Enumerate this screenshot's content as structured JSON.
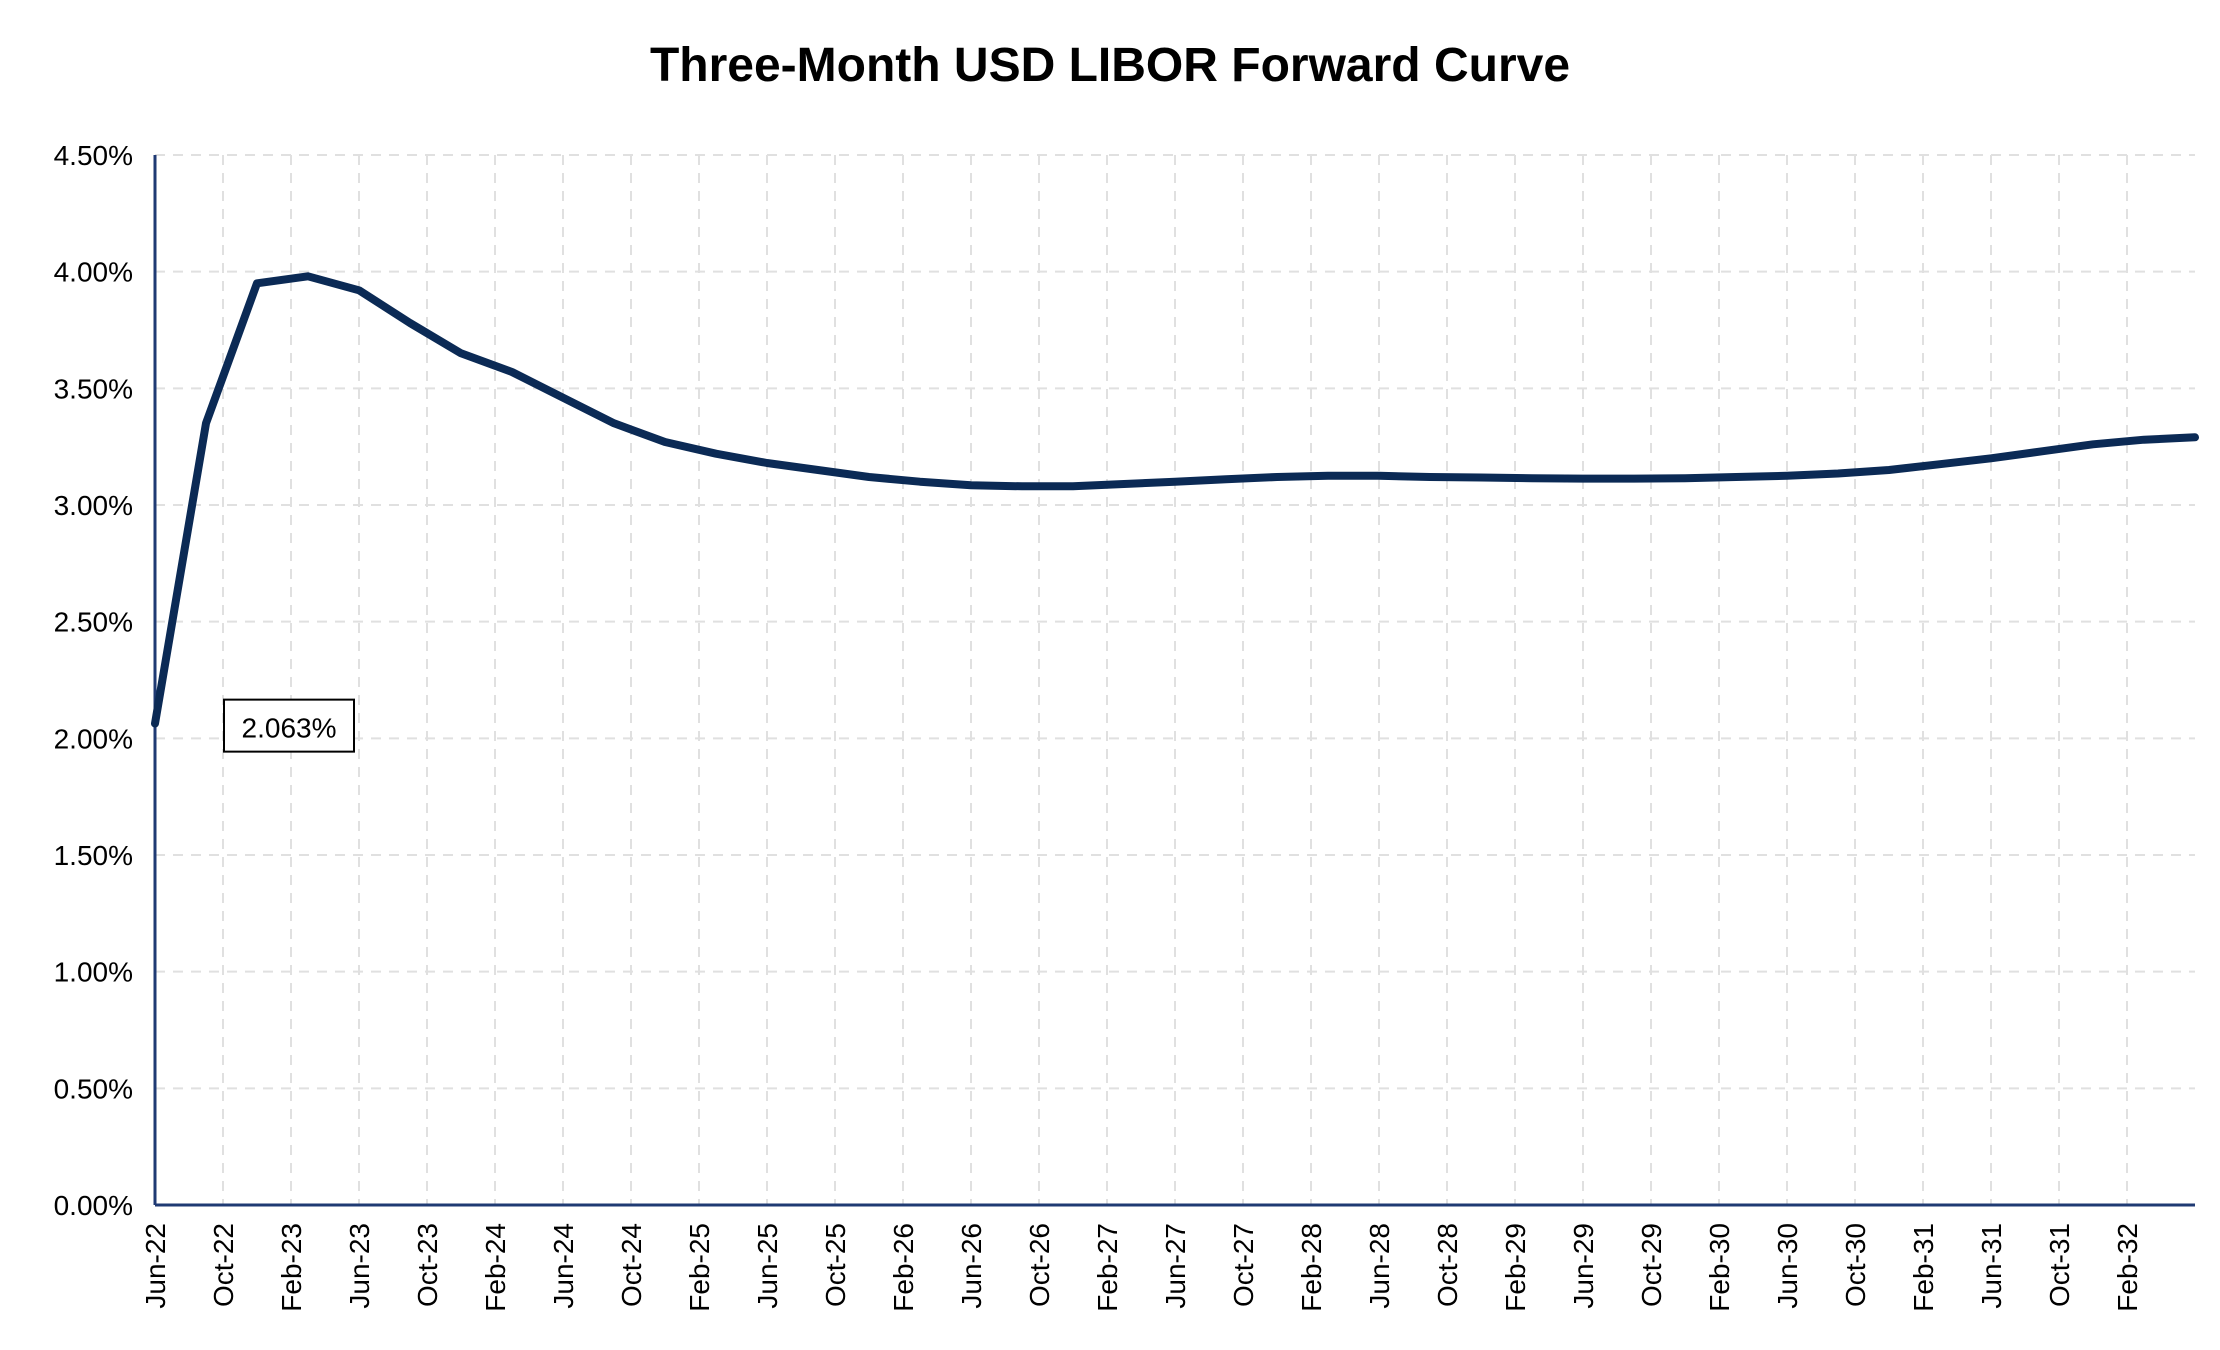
{
  "colors": {
    "line": "#0b2a55",
    "axis": "#1f3a73",
    "grid": "#e0e0e0"
  },
  "chart_data": {
    "type": "line",
    "title": "Three-Month USD LIBOR Forward Curve",
    "xlabel": "",
    "ylabel": "",
    "ylim": [
      0,
      4.5
    ],
    "y_ticks": [
      "0.00%",
      "0.50%",
      "1.00%",
      "1.50%",
      "2.00%",
      "2.50%",
      "3.00%",
      "3.50%",
      "4.00%",
      "4.50%"
    ],
    "y_tick_values": [
      0,
      0.5,
      1.0,
      1.5,
      2.0,
      2.5,
      3.0,
      3.5,
      4.0,
      4.5
    ],
    "x_ticks": [
      "Jun-22",
      "Oct-22",
      "Feb-23",
      "Jun-23",
      "Oct-23",
      "Feb-24",
      "Jun-24",
      "Oct-24",
      "Feb-25",
      "Jun-25",
      "Oct-25",
      "Feb-26",
      "Jun-26",
      "Oct-26",
      "Feb-27",
      "Jun-27",
      "Oct-27",
      "Feb-28",
      "Jun-28",
      "Oct-28",
      "Feb-29",
      "Jun-29",
      "Oct-29",
      "Feb-30",
      "Jun-30",
      "Oct-30",
      "Feb-31",
      "Jun-31",
      "Oct-31",
      "Feb-32"
    ],
    "grid": true,
    "legend": "none",
    "series": [
      {
        "x": [
          "Jun-22",
          "Sep-22",
          "Dec-22",
          "Mar-23",
          "Jun-23",
          "Sep-23",
          "Dec-23",
          "Mar-24",
          "Jun-24",
          "Sep-24",
          "Dec-24",
          "Mar-25",
          "Jun-25",
          "Sep-25",
          "Dec-25",
          "Mar-26",
          "Jun-26",
          "Sep-26",
          "Dec-26",
          "Mar-27",
          "Jun-27",
          "Sep-27",
          "Dec-27",
          "Mar-28",
          "Jun-28",
          "Sep-28",
          "Dec-28",
          "Mar-29",
          "Jun-29",
          "Sep-29",
          "Dec-29",
          "Mar-30",
          "Jun-30",
          "Sep-30",
          "Dec-30",
          "Mar-31",
          "Jun-31",
          "Sep-31",
          "Dec-31",
          "Mar-32",
          "Jun-32"
        ],
        "values": [
          2.063,
          3.35,
          3.95,
          3.98,
          3.92,
          3.78,
          3.65,
          3.57,
          3.46,
          3.35,
          3.27,
          3.22,
          3.18,
          3.15,
          3.12,
          3.1,
          3.085,
          3.08,
          3.08,
          3.09,
          3.1,
          3.11,
          3.12,
          3.125,
          3.125,
          3.12,
          3.118,
          3.115,
          3.113,
          3.113,
          3.115,
          3.12,
          3.125,
          3.135,
          3.15,
          3.175,
          3.2,
          3.23,
          3.26,
          3.28,
          3.29
        ]
      }
    ],
    "annotations": [
      {
        "x": "Jun-22",
        "text": "2.063%"
      }
    ]
  }
}
